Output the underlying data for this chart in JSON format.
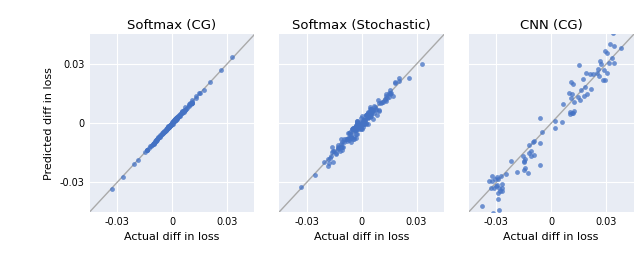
{
  "titles": [
    "Softmax (CG)",
    "Softmax (Stochastic)",
    "CNN (CG)"
  ],
  "xlabel": "Actual diff in loss",
  "ylabel": "Predicted diff in loss",
  "xlim": [
    -0.045,
    0.045
  ],
  "ylim": [
    -0.045,
    0.045
  ],
  "xticks": [
    -0.03,
    0,
    0.03
  ],
  "yticks": [
    -0.03,
    0,
    0.03
  ],
  "xticklabels": [
    "-0.03",
    "0",
    "0.03"
  ],
  "yticklabels": [
    "-0.03",
    "0",
    "0.03"
  ],
  "dot_color": "#4472C4",
  "dot_alpha": 0.75,
  "dot_size": 12,
  "diag_color": "#aaaaaa",
  "bg_color": "#E8ECF4",
  "figsize": [
    6.4,
    2.65
  ],
  "dpi": 100
}
